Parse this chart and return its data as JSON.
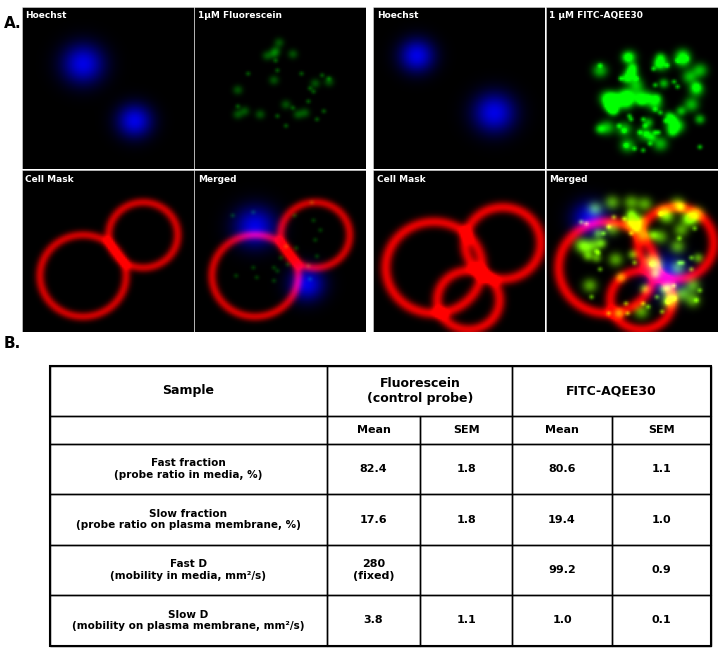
{
  "panel_A_label": "A.",
  "panel_B_label": "B.",
  "image_panel_titles_left": [
    "Hoechst",
    "1μM Fluorescein",
    "Cell Mask",
    "Merged"
  ],
  "image_panel_titles_right": [
    "Hoechst",
    "1 μM FITC-AQEE30",
    "Cell Mask",
    "Merged"
  ],
  "table_col_headers": [
    "Sample",
    "Fluorescein\n(control probe)",
    "",
    "FITC-AQEE30",
    ""
  ],
  "table_subheaders": [
    "",
    "Mean",
    "SEM",
    "Mean",
    "SEM"
  ],
  "table_rows": [
    [
      "Fast fraction\n(probe ratio in media, %)",
      "82.4",
      "1.8",
      "80.6",
      "1.1"
    ],
    [
      "Slow fraction\n(probe ratio on plasma membrane, %)",
      "17.6",
      "1.8",
      "19.4",
      "1.0"
    ],
    [
      "Fast D\n(mobility in media, mm²/s)",
      "280\n(fixed)",
      "",
      "99.2",
      "0.9"
    ],
    [
      "Slow D\n(mobility on plasma membrane, mm²/s)",
      "3.8",
      "1.1",
      "1.0",
      "0.1"
    ]
  ],
  "bg_color": "#ffffff",
  "table_border_color": "#000000",
  "image_bg": "#000000",
  "hoechst_color_left": "#0000cc",
  "fluorescein_color": "#004400",
  "cellmask_color": "#550000",
  "merged_color_left": "#220011",
  "hoechst_color_right": "#0000cc",
  "fitc_color": "#003300",
  "cellmask_color_right": "#550000",
  "merged_color_right": "#220011"
}
